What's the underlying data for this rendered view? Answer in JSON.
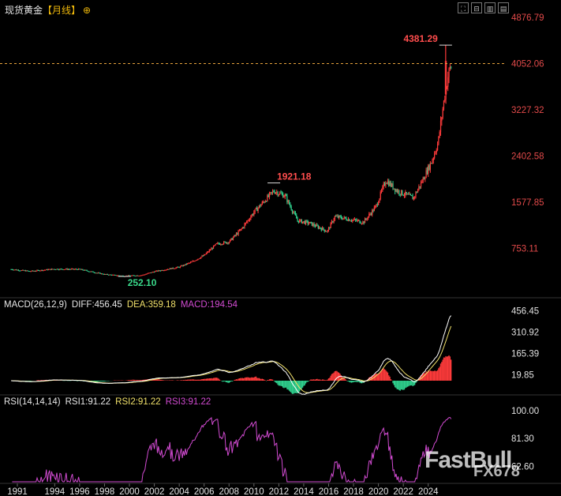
{
  "header": {
    "title": "现货黄金",
    "timeframe": "【月线】",
    "add_symbol": "⊕",
    "tools": [
      "⛶",
      "⊟",
      "▥",
      "▤"
    ]
  },
  "macd": {
    "params": "MACD(26,12,9)",
    "diff": "DIFF:456.45",
    "dea": "DEA:359.18",
    "macd": "MACD:194.54",
    "axis": [
      "456.45",
      "310.92",
      "165.39",
      "19.85"
    ]
  },
  "rsi": {
    "params": "RSI(14,14,14)",
    "rsi1": "RSI1:91.22",
    "rsi2": "RSI2:91.22",
    "rsi3": "RSI3:91.22",
    "axis": [
      "100.00",
      "81.30",
      "62.60"
    ]
  },
  "watermark": {
    "brand": "FastBull",
    "sub": "FX678"
  },
  "colors": {
    "up": "#ff3b3b",
    "down": "#2fd18e",
    "diff": "#ffffff",
    "dea": "#f0e06a",
    "rsi": "#d24bd2",
    "dashed": "#e6a23c"
  },
  "chart_data": {
    "type": "candlestick",
    "x_ticks": [
      "1991",
      "1994",
      "1996",
      "1998",
      "2000",
      "2002",
      "2004",
      "2006",
      "2008",
      "2010",
      "2012",
      "2014",
      "2016",
      "2018",
      "2020",
      "2022",
      "2024"
    ],
    "y_ticks": [
      "4876.79",
      "4052.06",
      "3227.32",
      "2402.58",
      "1577.85",
      "753.11"
    ],
    "y_range": [
      -100,
      4876.79
    ],
    "annotations": [
      {
        "label": "4381.29",
        "year": 2025.4,
        "value": 4381.29
      },
      {
        "label": "1921.18",
        "year": 2011.6,
        "value": 1921.18
      },
      {
        "label": "252.10",
        "year": 1999.6,
        "value": 252.1
      }
    ],
    "current_price": 4052.06,
    "key_points": [
      [
        1990.5,
        380
      ],
      [
        1992,
        345
      ],
      [
        1994,
        385
      ],
      [
        1996,
        380
      ],
      [
        1998,
        290
      ],
      [
        1999.6,
        260
      ],
      [
        2001,
        275
      ],
      [
        2002,
        340
      ],
      [
        2004,
        420
      ],
      [
        2005,
        510
      ],
      [
        2006,
        630
      ],
      [
        2007,
        830
      ],
      [
        2008,
        870
      ],
      [
        2009,
        1100
      ],
      [
        2010,
        1400
      ],
      [
        2011.6,
        1780
      ],
      [
        2012.5,
        1690
      ],
      [
        2013.5,
        1250
      ],
      [
        2014.5,
        1200
      ],
      [
        2015.9,
        1060
      ],
      [
        2016.5,
        1320
      ],
      [
        2017.5,
        1280
      ],
      [
        2018.8,
        1220
      ],
      [
        2019.8,
        1500
      ],
      [
        2020.6,
        1970
      ],
      [
        2021.5,
        1780
      ],
      [
        2022.8,
        1650
      ],
      [
        2023.5,
        1950
      ],
      [
        2024.3,
        2320
      ],
      [
        2024.8,
        2650
      ],
      [
        2025.2,
        3300
      ],
      [
        2025.6,
        3850
      ],
      [
        2025.8,
        4000
      ]
    ]
  }
}
